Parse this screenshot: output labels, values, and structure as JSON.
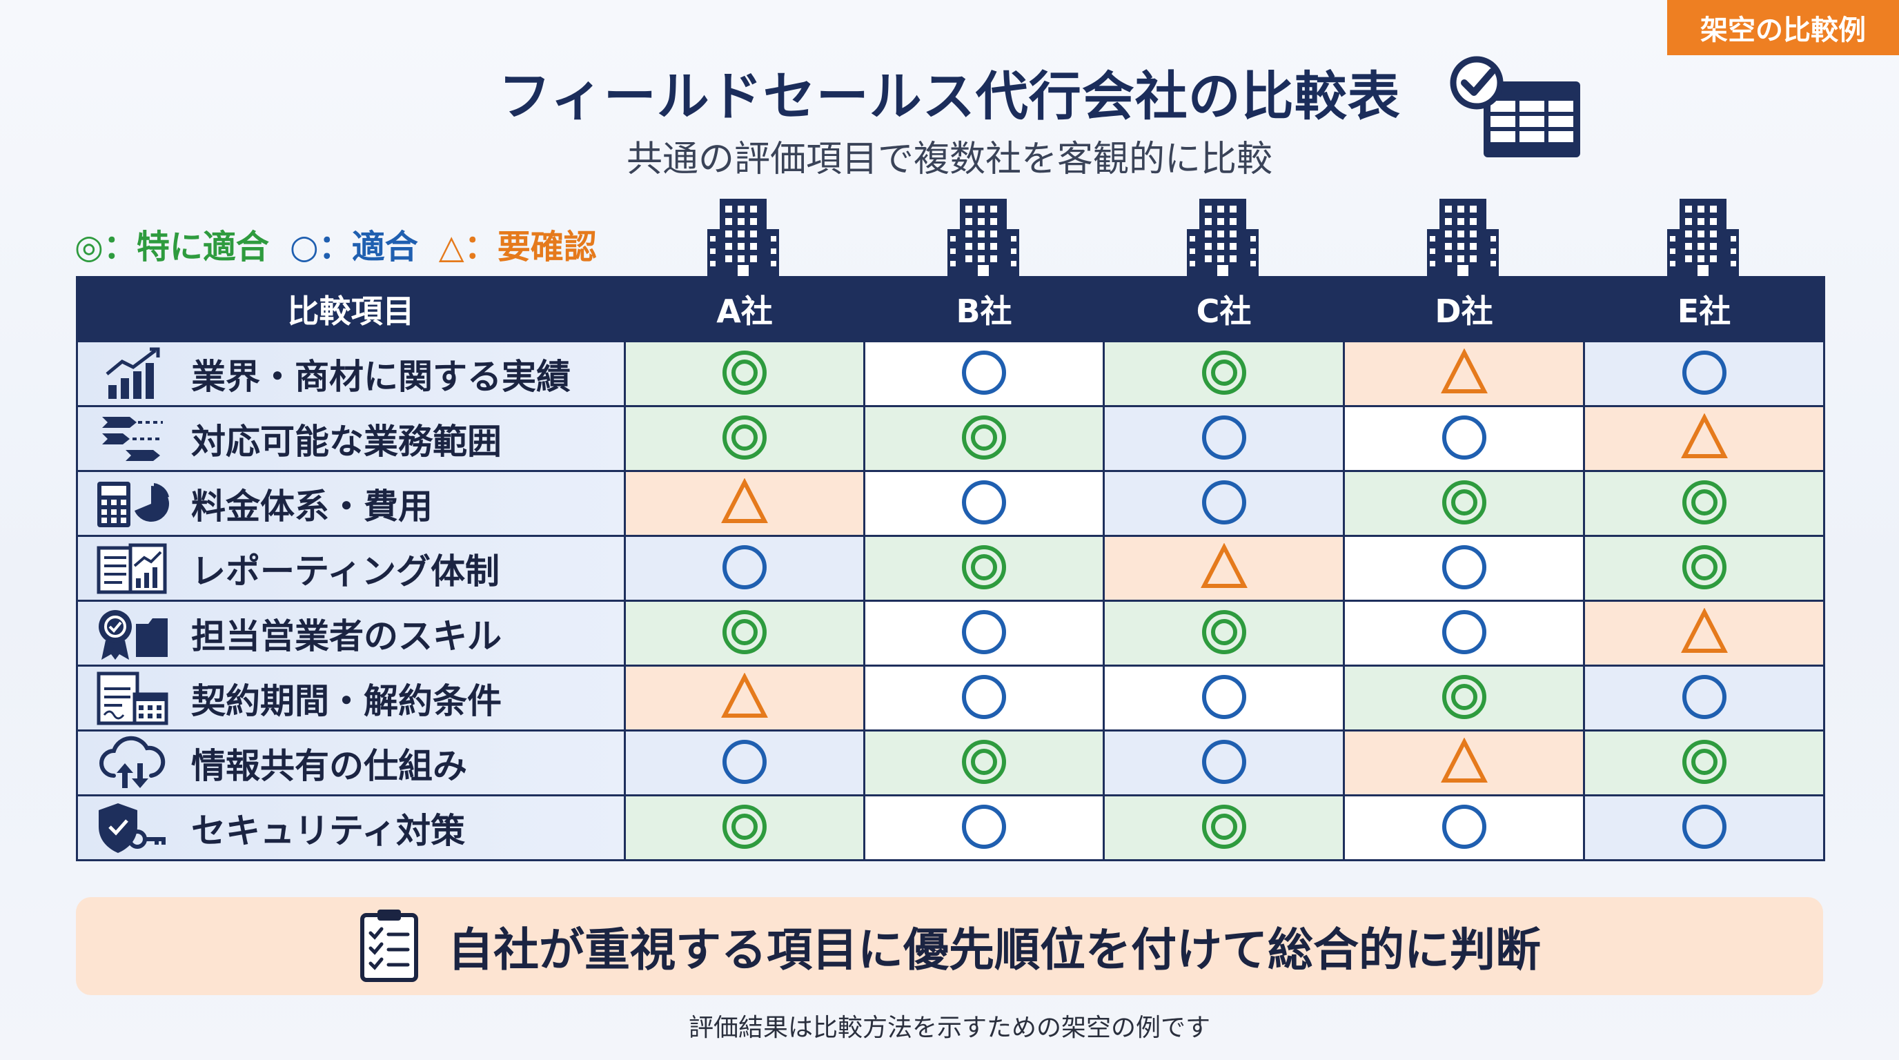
{
  "badge": "架空の比較例",
  "title": "フィールドセールス代行会社の比較表",
  "subtitle": "共通の評価項目で複数社を客観的に比較",
  "legend": {
    "excellent": "◎：特に適合",
    "good": "○：適合",
    "check": "△：要確認"
  },
  "colors": {
    "navy": "#1e2f5c",
    "excellent": "#2e9b3e",
    "good": "#1f5fb0",
    "check": "#e57a1c",
    "badge": "#ee7f22"
  },
  "table": {
    "header_label": "比較項目",
    "companies": [
      "A社",
      "B社",
      "C社",
      "D社",
      "E社"
    ],
    "rows": [
      {
        "label": "業界・商材に関する実績",
        "icon": "growth-chart-icon",
        "ratings": [
          "excellent",
          "good",
          "excellent",
          "check",
          "good"
        ]
      },
      {
        "label": "対応可能な業務範囲",
        "icon": "workflow-arrows-icon",
        "ratings": [
          "excellent",
          "excellent",
          "good",
          "good",
          "check"
        ]
      },
      {
        "label": "料金体系・費用",
        "icon": "calculator-pie-icon",
        "ratings": [
          "check",
          "good",
          "good",
          "excellent",
          "excellent"
        ]
      },
      {
        "label": "レポーティング体制",
        "icon": "report-chart-icon",
        "ratings": [
          "good",
          "excellent",
          "check",
          "good",
          "excellent"
        ]
      },
      {
        "label": "担当営業者のスキル",
        "icon": "award-badge-icon",
        "ratings": [
          "excellent",
          "good",
          "excellent",
          "good",
          "check"
        ]
      },
      {
        "label": "契約期間・解約条件",
        "icon": "contract-calendar-icon",
        "ratings": [
          "check",
          "good",
          "good",
          "excellent",
          "good"
        ]
      },
      {
        "label": "情報共有の仕組み",
        "icon": "cloud-sync-icon",
        "ratings": [
          "good",
          "excellent",
          "good",
          "check",
          "excellent"
        ]
      },
      {
        "label": "セキュリティ対策",
        "icon": "shield-key-icon",
        "ratings": [
          "excellent",
          "good",
          "excellent",
          "good",
          "good"
        ]
      }
    ]
  },
  "footer": {
    "message": "自社が重視する項目に優先順位を付けて総合的に判断",
    "icon": "checklist-clipboard-icon"
  },
  "note": "評価結果は比較方法を示すための架空の例です"
}
